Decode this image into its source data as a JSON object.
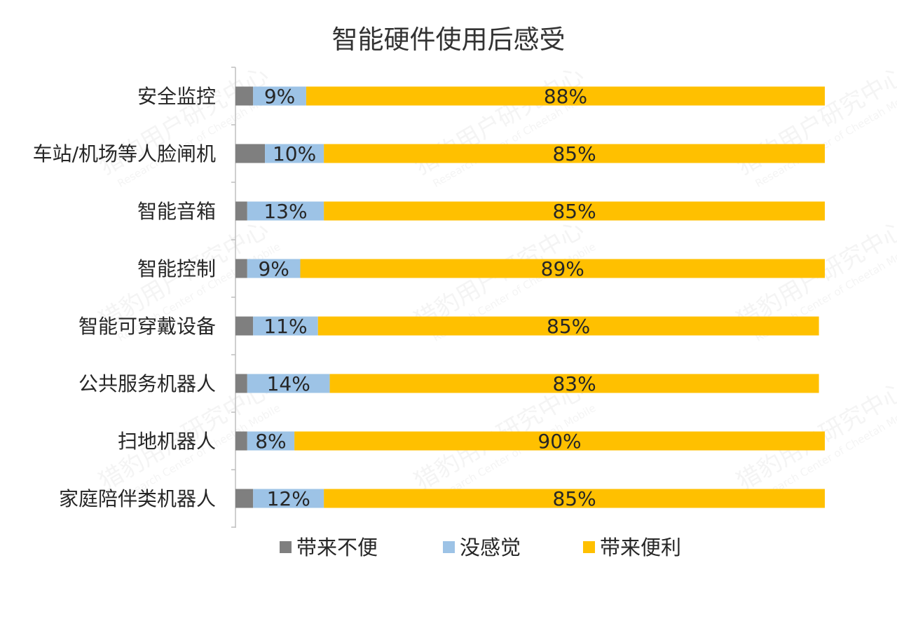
{
  "chart_data": {
    "type": "bar",
    "orientation": "horizontal",
    "stacked": true,
    "title": "智能硬件使用后感受",
    "categories": [
      "安全监控",
      "车站/机场等人脸闸机",
      "智能音箱",
      "智能控制",
      "智能可穿戴设备",
      "公共服务机器人",
      "扫地机器人",
      "家庭陪伴类机器人"
    ],
    "series": [
      {
        "name": "带来不便",
        "color": "#7f7f7f",
        "values": [
          3,
          5,
          2,
          2,
          3,
          2,
          2,
          3
        ]
      },
      {
        "name": "没感觉",
        "color": "#9dc3e6",
        "values": [
          9,
          10,
          13,
          9,
          11,
          14,
          8,
          12
        ]
      },
      {
        "name": "带来便利",
        "color": "#ffc000",
        "values": [
          88,
          85,
          85,
          89,
          85,
          83,
          90,
          85
        ]
      }
    ],
    "data_labels": {
      "没感觉": [
        "9%",
        "10%",
        "13%",
        "9%",
        "11%",
        "14%",
        "8%",
        "12%"
      ],
      "带来便利": [
        "88%",
        "85%",
        "85%",
        "89%",
        "85%",
        "83%",
        "90%",
        "85%"
      ]
    },
    "xlim": [
      0,
      100
    ],
    "grid": false,
    "legend_position": "bottom"
  },
  "watermark": {
    "org": "猎豹用户研究中心",
    "org_en": "Research Center of Cheetah Mobile"
  }
}
